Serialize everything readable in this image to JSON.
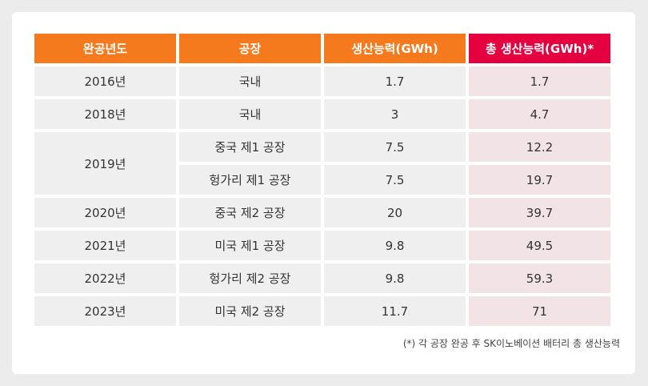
{
  "table": {
    "headers": [
      "완공년도",
      "공장",
      "생산능력(GWh)",
      "총 생산능력(GWh)*"
    ],
    "rows": [
      {
        "year": "2016년",
        "plant": "국내",
        "capacity": "1.7",
        "total": "1.7"
      },
      {
        "year": "2018년",
        "plant": "국내",
        "capacity": "3",
        "total": "4.7"
      },
      {
        "year": "2019년",
        "plant": "중국 제1 공장",
        "capacity": "7.5",
        "total": "12.2"
      },
      {
        "year": "",
        "plant": "헝가리 제1 공장",
        "capacity": "7.5",
        "total": "19.7"
      },
      {
        "year": "2020년",
        "plant": "중국 제2 공장",
        "capacity": "20",
        "total": "39.7"
      },
      {
        "year": "2021년",
        "plant": "미국 제1 공장",
        "capacity": "9.8",
        "total": "49.5"
      },
      {
        "year": "2022년",
        "plant": "헝가리 제2 공장",
        "capacity": "9.8",
        "total": "59.3"
      },
      {
        "year": "2023년",
        "plant": "미국 제2 공장",
        "capacity": "11.7",
        "total": "71"
      }
    ]
  },
  "footnote": "(*) 각 공장 완공 후 SK이노베이션 배터리 총 생산능력",
  "colors": {
    "header_orange": "#f57a1e",
    "header_red": "#e5003f",
    "cell_gray": "#efefef",
    "cell_pink": "#f2e3e6"
  }
}
